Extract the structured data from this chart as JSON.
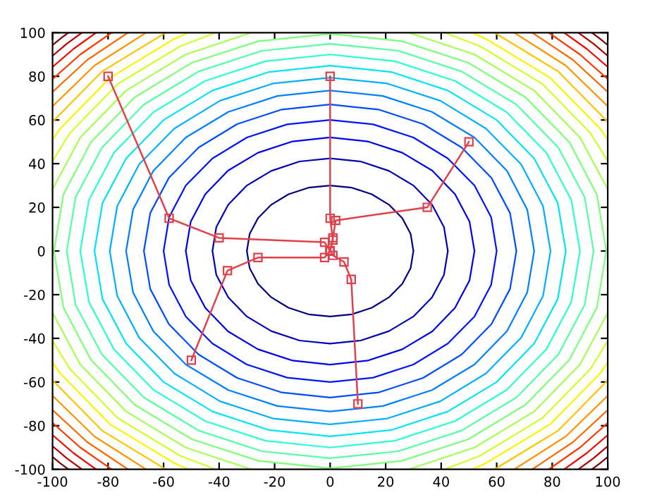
{
  "chart_data": {
    "type": "line",
    "xlim": [
      -100,
      100
    ],
    "ylim": [
      -100,
      100
    ],
    "xticks": [
      -100,
      -80,
      -60,
      -40,
      -20,
      0,
      20,
      40,
      60,
      80,
      100
    ],
    "yticks": [
      -100,
      -80,
      -60,
      -40,
      -20,
      0,
      20,
      40,
      60,
      80,
      100
    ],
    "marker": "square",
    "line_style": "solid",
    "grid": false,
    "legend": false,
    "series": [
      {
        "color": "#000080",
        "marker": "none",
        "x": [
          30,
          29,
          26,
          21.2,
          15,
          7.8,
          0,
          -7.8,
          -15,
          -21.2,
          -26,
          -29,
          -30,
          null,
          -30,
          -29,
          -26,
          -21.2,
          -15,
          -7.8,
          0,
          7.8,
          15,
          21.2,
          26,
          29,
          30
        ],
        "values": [
          0,
          7.8,
          15,
          21.2,
          26,
          29,
          30,
          29,
          26,
          21.2,
          15,
          7.8,
          0,
          null,
          0,
          -7.8,
          -15,
          -21.2,
          -26,
          -29,
          -30,
          -29,
          -26,
          -21.2,
          -15,
          -7.8,
          0
        ]
      },
      {
        "color": "#0000b6",
        "marker": "none",
        "x": [
          42.4,
          41,
          36.7,
          30,
          21.2,
          11,
          0,
          -11,
          -21.2,
          -30,
          -36.7,
          -41,
          -42.4,
          null,
          -42.4,
          -41,
          -36.7,
          -30,
          -21.2,
          -11,
          0,
          11,
          21.2,
          30,
          36.7,
          41,
          42.4
        ],
        "values": [
          0,
          11,
          21.2,
          30,
          36.7,
          41,
          42.4,
          41,
          36.7,
          30,
          21.2,
          11,
          0,
          null,
          0,
          -11,
          -21.2,
          -30,
          -36.7,
          -41,
          -42.4,
          -41,
          -36.7,
          -30,
          -21.2,
          -11,
          0
        ]
      },
      {
        "color": "#0000f1",
        "marker": "none",
        "x": [
          52,
          50.2,
          45,
          36.8,
          26,
          13.5,
          0,
          -13.5,
          -26,
          -36.8,
          -45,
          -50.2,
          -52,
          null,
          -52,
          -50.2,
          -45,
          -36.8,
          -26,
          -13.5,
          0,
          13.5,
          26,
          36.8,
          45,
          50.2,
          52
        ],
        "values": [
          0,
          13.5,
          26,
          36.8,
          45,
          50.2,
          52,
          50.2,
          45,
          36.8,
          26,
          13.5,
          0,
          null,
          0,
          -13.5,
          -26,
          -36.8,
          -45,
          -50.2,
          -52,
          -50.2,
          -45,
          -36.8,
          -26,
          -13.5,
          0
        ]
      },
      {
        "color": "#0014ff",
        "marker": "none",
        "x": [
          60,
          58,
          52,
          42.4,
          30,
          15.5,
          0,
          -15.5,
          -30,
          -42.4,
          -52,
          -58,
          -60,
          null,
          -60,
          -58,
          -52,
          -42.4,
          -30,
          -15.5,
          0,
          15.5,
          30,
          42.4,
          52,
          58,
          60
        ],
        "values": [
          0,
          15.5,
          30,
          42.4,
          52,
          58,
          60,
          58,
          52,
          42.4,
          30,
          15.5,
          0,
          null,
          0,
          -15.5,
          -30,
          -42.4,
          -52,
          -58,
          -60,
          -58,
          -52,
          -42.4,
          -30,
          -15.5,
          0
        ]
      },
      {
        "color": "#004cff",
        "marker": "none",
        "x": [
          67.1,
          64.8,
          58.1,
          47.4,
          33.5,
          17.4,
          0,
          -17.4,
          -33.5,
          -47.4,
          -58.1,
          -64.8,
          -67.1,
          null,
          -67.1,
          -64.8,
          -58.1,
          -47.4,
          -33.5,
          -17.4,
          0,
          17.4,
          33.5,
          47.4,
          58.1,
          64.8,
          67.1
        ],
        "values": [
          0,
          17.4,
          33.5,
          47.4,
          58.1,
          64.8,
          67.1,
          64.8,
          58.1,
          47.4,
          33.5,
          17.4,
          0,
          null,
          0,
          -17.4,
          -33.5,
          -47.4,
          -58.1,
          -64.8,
          -67.1,
          -64.8,
          -58.1,
          -47.4,
          -33.5,
          -17.4,
          0
        ]
      },
      {
        "color": "#0080ff",
        "marker": "none",
        "x": [
          73.5,
          71,
          63.7,
          52,
          36.7,
          19,
          0,
          -19,
          -36.7,
          -52,
          -63.7,
          -71,
          -73.5,
          null,
          -73.5,
          -71,
          -63.7,
          -52,
          -36.7,
          -19,
          0,
          19,
          36.7,
          52,
          63.7,
          71,
          73.5
        ],
        "values": [
          0,
          19,
          36.7,
          52,
          63.7,
          71,
          73.5,
          71,
          63.7,
          52,
          36.7,
          19,
          0,
          null,
          0,
          -19,
          -36.7,
          -52,
          -63.7,
          -71,
          -73.5,
          -71,
          -63.7,
          -52,
          -36.7,
          -19,
          0
        ]
      },
      {
        "color": "#00b0ff",
        "marker": "none",
        "x": [
          79.4,
          76.7,
          68.8,
          56.1,
          39.7,
          20.6,
          0,
          -20.6,
          -39.7,
          -56.1,
          -68.8,
          -76.7,
          -79.4,
          null,
          -79.4,
          -76.7,
          -68.8,
          -56.1,
          -39.7,
          -20.6,
          0,
          20.6,
          39.7,
          56.1,
          68.8,
          76.7,
          79.4
        ],
        "values": [
          0,
          20.6,
          39.7,
          56.1,
          68.8,
          76.7,
          79.4,
          76.7,
          68.8,
          56.1,
          39.7,
          20.6,
          0,
          null,
          0,
          -20.6,
          -39.7,
          -56.1,
          -68.8,
          -76.7,
          -79.4,
          -76.7,
          -68.8,
          -56.1,
          -39.7,
          -20.6,
          0
        ]
      },
      {
        "color": "#00e4f8",
        "marker": "none",
        "x": [
          84.9,
          82,
          73.5,
          60,
          42.4,
          22,
          0,
          -22,
          -42.4,
          -60,
          -73.5,
          -82,
          -84.9,
          null,
          -84.9,
          -82,
          -73.5,
          -60,
          -42.4,
          -22,
          0,
          22,
          42.4,
          60,
          73.5,
          82,
          84.9
        ],
        "values": [
          0,
          22,
          42.4,
          60,
          73.5,
          82,
          84.9,
          82,
          73.5,
          60,
          42.4,
          22,
          0,
          null,
          0,
          -22,
          -42.4,
          -60,
          -73.5,
          -82,
          -84.9,
          -82,
          -73.5,
          -60,
          -42.4,
          -22,
          0
        ]
      },
      {
        "color": "#29ffce",
        "marker": "none",
        "x": [
          90,
          86.9,
          77.9,
          63.6,
          45,
          23.3,
          0,
          -23.3,
          -45,
          -63.6,
          -77.9,
          -86.9,
          -90,
          null,
          -90,
          -86.9,
          -77.9,
          -63.6,
          -45,
          -23.3,
          0,
          23.3,
          45,
          63.6,
          77.9,
          86.9,
          90
        ],
        "values": [
          0,
          23.3,
          45,
          63.6,
          77.9,
          86.9,
          90,
          86.9,
          77.9,
          63.6,
          45,
          23.3,
          0,
          null,
          0,
          -23.3,
          -45,
          -63.6,
          -77.9,
          -86.9,
          -90,
          -86.9,
          -77.9,
          -63.6,
          -45,
          -23.3,
          0
        ]
      },
      {
        "color": "#53ffa4",
        "marker": "none",
        "x": [
          94.9,
          91.7,
          82.2,
          67.1,
          47.4,
          24.6,
          0,
          -24.6,
          -47.4,
          -67.1,
          -82.2,
          -91.7,
          -94.9,
          null,
          -94.9,
          -91.7,
          -82.2,
          -67.1,
          -47.4,
          -24.6,
          0,
          24.6,
          47.4,
          67.1,
          82.2,
          91.7,
          94.9
        ],
        "values": [
          0,
          24.6,
          47.4,
          67.1,
          82.2,
          91.7,
          94.9,
          91.7,
          82.2,
          67.1,
          47.4,
          24.6,
          0,
          null,
          0,
          -24.6,
          -47.4,
          -67.1,
          -82.2,
          -91.7,
          -94.9,
          -91.7,
          -82.2,
          -67.1,
          -47.4,
          -24.6,
          0
        ]
      },
      {
        "color": "#7dff7a",
        "marker": "none",
        "x": [
          99.5,
          96.1,
          86.2,
          70.4,
          49.8,
          25.8,
          0,
          -25.8,
          -49.8,
          -70.4,
          -86.2,
          -96.1,
          -99.5,
          null,
          -99.5,
          -96.1,
          -86.2,
          -70.4,
          -49.8,
          -25.8,
          0,
          25.8,
          49.8,
          70.4,
          86.2,
          96.1,
          99.5
        ],
        "values": [
          0,
          25.8,
          49.8,
          70.4,
          86.2,
          96.1,
          99.5,
          96.1,
          86.2,
          70.4,
          49.8,
          25.8,
          0,
          null,
          0,
          -25.8,
          -49.8,
          -70.4,
          -86.2,
          -96.1,
          -99.5,
          -96.1,
          -86.2,
          -70.4,
          -49.8,
          -25.8,
          0
        ]
      },
      {
        "color": "#a4ff53",
        "marker": "none",
        "x": [
          100,
          90,
          73.5,
          52,
          28.3,
          null,
          -28.3,
          -52,
          -73.5,
          -90,
          -100,
          null,
          -100,
          -90,
          -73.5,
          -52,
          -28.3,
          null,
          28.3,
          52,
          73.5,
          90,
          100
        ],
        "values": [
          28.3,
          52,
          73.5,
          90,
          100,
          null,
          100,
          90,
          73.5,
          52,
          28.3,
          null,
          -28.3,
          -52,
          -73.5,
          -90,
          -100,
          null,
          -100,
          -90,
          -73.5,
          -52,
          -28.3
        ]
      },
      {
        "color": "#ceff29",
        "marker": "none",
        "x": [
          100,
          93.7,
          76.5,
          54.1,
          41.2,
          null,
          -41.2,
          -54.1,
          -76.5,
          -93.7,
          -100,
          null,
          -100,
          -93.7,
          -76.5,
          -54.1,
          -41.2,
          null,
          41.2,
          54.1,
          76.5,
          93.7,
          100
        ],
        "values": [
          41.2,
          54.1,
          76.5,
          93.7,
          100,
          null,
          100,
          93.7,
          76.5,
          54.1,
          41.2,
          null,
          -41.2,
          -54.1,
          -76.5,
          -93.7,
          -100,
          null,
          -100,
          -93.7,
          -76.5,
          -54.1,
          -41.2
        ]
      },
      {
        "color": "#f8f500",
        "marker": "none",
        "x": [
          100,
          97.2,
          79.3,
          56.1,
          51,
          null,
          -51,
          -56.1,
          -79.3,
          -97.2,
          -100,
          null,
          -100,
          -97.2,
          -79.3,
          -56.1,
          -51,
          null,
          51,
          56.1,
          79.3,
          97.2,
          100
        ],
        "values": [
          51,
          56.1,
          79.3,
          97.2,
          100,
          null,
          100,
          97.2,
          79.3,
          56.1,
          51,
          null,
          -51,
          -56.1,
          -79.3,
          -97.2,
          -100,
          null,
          -100,
          -97.2,
          -79.3,
          -56.1,
          -51
        ]
      },
      {
        "color": "#ffc400",
        "marker": "none",
        "x": [
          100,
          82.2,
          59.2,
          null,
          -59.2,
          -82.2,
          -100,
          null,
          -100,
          -82.2,
          -59.2,
          null,
          59.2,
          82.2,
          100
        ],
        "values": [
          59.2,
          82.2,
          100,
          null,
          100,
          82.2,
          59.2,
          null,
          -59.2,
          -82.2,
          -100,
          null,
          -100,
          -82.2,
          -59.2
        ]
      },
      {
        "color": "#ff9400",
        "marker": "none",
        "x": [
          100,
          84.9,
          66.3,
          null,
          -66.3,
          -84.9,
          -100,
          null,
          -100,
          -84.9,
          -66.3,
          null,
          66.3,
          84.9,
          100
        ],
        "values": [
          66.3,
          84.9,
          100,
          null,
          100,
          84.9,
          66.3,
          null,
          -66.3,
          -84.9,
          -100,
          null,
          -100,
          -84.9,
          -66.3
        ]
      },
      {
        "color": "#ff6800",
        "marker": "none",
        "x": [
          100,
          87.5,
          72.8,
          null,
          -72.8,
          -87.5,
          -100,
          null,
          -100,
          -87.5,
          -72.8,
          null,
          72.8,
          87.5,
          100
        ],
        "values": [
          72.8,
          87.5,
          100,
          null,
          100,
          87.5,
          72.8,
          null,
          -72.8,
          -87.5,
          -100,
          null,
          -100,
          -87.5,
          -72.8
        ]
      },
      {
        "color": "#ff3800",
        "marker": "none",
        "x": [
          100,
          90,
          78.7,
          null,
          -78.7,
          -90,
          -100,
          null,
          -100,
          -90,
          -78.7,
          null,
          78.7,
          90,
          100
        ],
        "values": [
          78.7,
          90,
          100,
          null,
          100,
          90,
          78.7,
          null,
          -78.7,
          -90,
          -100,
          null,
          -100,
          -90,
          -78.7
        ]
      },
      {
        "color": "#f10800",
        "marker": "none",
        "x": [
          100,
          92.5,
          84.3,
          null,
          -84.3,
          -92.5,
          -100,
          null,
          -100,
          -92.5,
          -84.3,
          null,
          84.3,
          92.5,
          100
        ],
        "values": [
          84.3,
          92.5,
          100,
          null,
          100,
          92.5,
          84.3,
          null,
          -84.3,
          -92.5,
          -100,
          null,
          -100,
          -92.5,
          -84.3
        ]
      },
      {
        "color": "#b60000",
        "marker": "none",
        "x": [
          100,
          94.9,
          89.4,
          null,
          -89.4,
          -94.9,
          -100,
          null,
          -100,
          -94.9,
          -89.4,
          null,
          89.4,
          94.9,
          100
        ],
        "values": [
          89.4,
          94.9,
          100,
          null,
          100,
          94.9,
          89.4,
          null,
          -89.4,
          -94.9,
          -100,
          null,
          -100,
          -94.9,
          -89.4
        ]
      },
      {
        "color": "#800000",
        "marker": "none",
        "x": [
          100,
          97.2,
          94.3,
          null,
          -94.3,
          -97.2,
          -100,
          null,
          -100,
          -97.2,
          -94.3,
          null,
          94.3,
          97.2,
          100
        ],
        "values": [
          94.3,
          97.2,
          100,
          null,
          100,
          97.2,
          94.3,
          null,
          -94.3,
          -97.2,
          -100,
          null,
          -100,
          -97.2,
          -94.3
        ]
      },
      {
        "color": "#e0404a",
        "x": [
          -80,
          -58,
          -40,
          -2,
          0
        ],
        "values": [
          80,
          15,
          6,
          4,
          0
        ]
      },
      {
        "color": "#e0404a",
        "x": [
          0,
          0,
          1,
          0
        ],
        "values": [
          80,
          15,
          5,
          0
        ]
      },
      {
        "color": "#e0404a",
        "x": [
          50,
          35,
          2,
          1,
          0
        ],
        "values": [
          50,
          20,
          14,
          6,
          0
        ]
      },
      {
        "color": "#e0404a",
        "x": [
          -50,
          -37,
          -26,
          -2,
          0
        ],
        "values": [
          -50,
          -9,
          -3,
          -3,
          0
        ]
      },
      {
        "color": "#e0404a",
        "x": [
          10,
          7.6,
          5,
          1,
          0
        ],
        "values": [
          -70,
          -13,
          -5,
          -2,
          0
        ]
      }
    ]
  }
}
